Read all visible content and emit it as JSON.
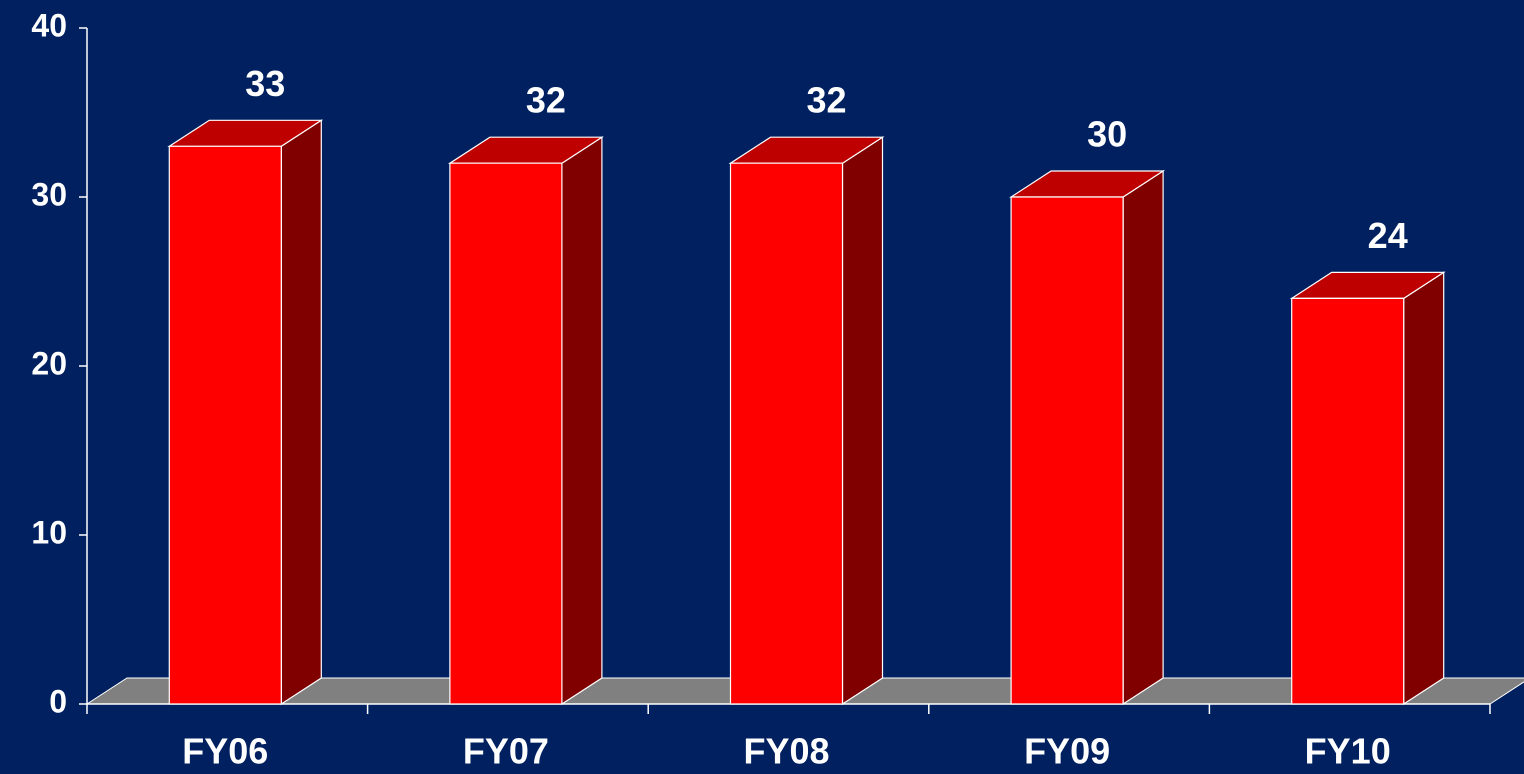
{
  "chart_data": {
    "type": "bar3d",
    "categories": [
      "FY06",
      "FY07",
      "FY08",
      "FY09",
      "FY10"
    ],
    "values": [
      33,
      32,
      32,
      30,
      24
    ],
    "color": "#ff0000",
    "ylim": [
      0,
      40
    ],
    "yticks": [
      0,
      10,
      20,
      30,
      40
    ]
  }
}
